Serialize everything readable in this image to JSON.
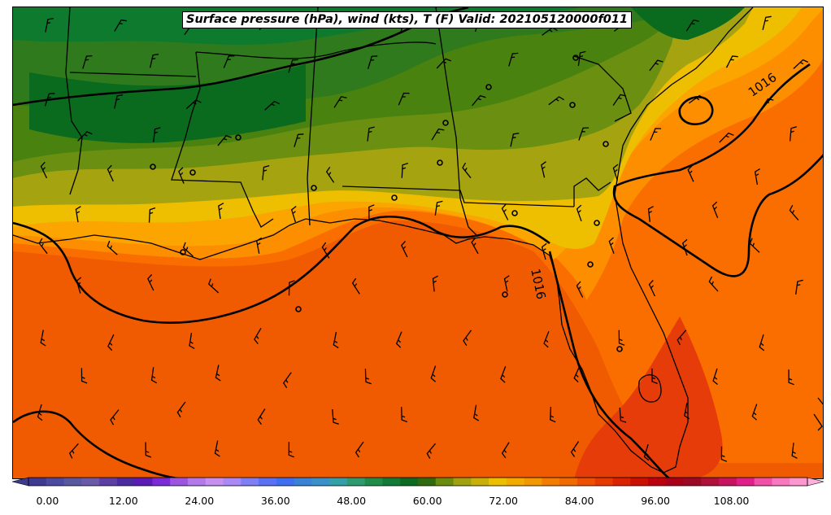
{
  "title": "Surface pressure (hPa), wind (kts), T (F) Valid: 202105120000f011",
  "contour_labels": [
    "1016",
    "1016"
  ],
  "legend": {
    "ticks": [
      "0.00",
      "12.00",
      "24.00",
      "36.00",
      "48.00",
      "60.00",
      "72.00",
      "84.00",
      "96.00",
      "108.00"
    ],
    "min": -3,
    "max": 120,
    "step": 3,
    "colors": [
      "#3d3a8f",
      "#4a4aa0",
      "#58589f",
      "#6a5aa8",
      "#5c3fa5",
      "#4a2aa0",
      "#5a1cb4",
      "#7a2ad6",
      "#9b55e0",
      "#b27ae8",
      "#c590f0",
      "#a889f5",
      "#7f7ff5",
      "#5a70f5",
      "#3f6ff0",
      "#3a82d6",
      "#3a90c8",
      "#33a0a8",
      "#2e9a70",
      "#1f8c4a",
      "#137a38",
      "#0d6a22",
      "#2f6a10",
      "#6a8a10",
      "#a0a010",
      "#c8b008",
      "#ecc000",
      "#f2ac00",
      "#f29800",
      "#f27d00",
      "#f06a00",
      "#ec5000",
      "#e63a00",
      "#dc2200",
      "#cc1000",
      "#bc0010",
      "#a80018",
      "#9a0a28",
      "#b0103c",
      "#c81460",
      "#e0208a",
      "#f050a8",
      "#f878c0",
      "#fc98d0"
    ]
  },
  "colors": {
    "very_warm": "#f05a00",
    "warm": "#fa6e00",
    "hot_spot": "#e63c0a",
    "orange": "#fd8e00",
    "light_orange": "#fca400",
    "yellow": "#eebe00",
    "olive": "#a6a310",
    "green_light": "#6b8f10",
    "green": "#4a820f",
    "green_mid": "#2f7a1c",
    "green_dark": "#0e7a2e",
    "green_darkest": "#0a6a1e"
  },
  "stations": 18,
  "barbs": 130
}
